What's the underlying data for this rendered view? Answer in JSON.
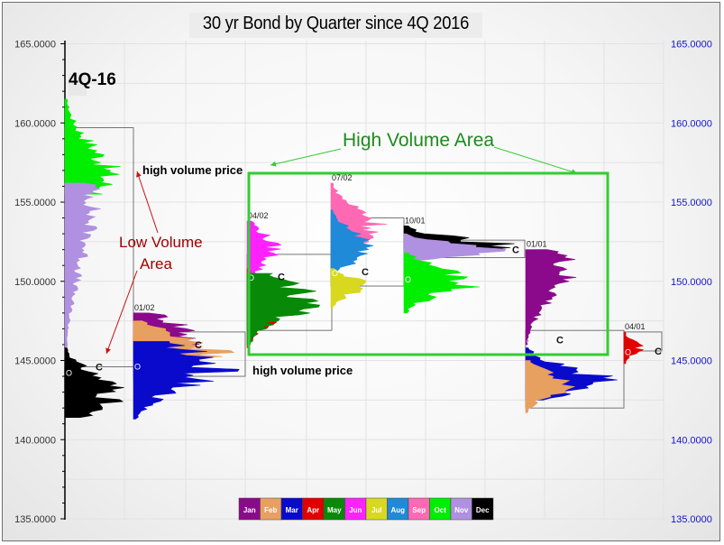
{
  "chart_data": {
    "type": "volume-profile",
    "title": "30 yr Bond by Quarter since 4Q 2016",
    "corner_label": "4Q-16",
    "y_axis": {
      "ylim": [
        135,
        166
      ],
      "ticks": [
        "135.0000",
        "140.0000",
        "145.0000",
        "150.0000",
        "155.0000",
        "160.0000",
        "165.0000"
      ],
      "left_color": "#333333",
      "right_color": "#1414c8"
    },
    "grid": true,
    "legend": {
      "placement": "bottom-center",
      "months": [
        {
          "label": "Jan",
          "color": "#8b0a8b"
        },
        {
          "label": "Feb",
          "color": "#e8a060"
        },
        {
          "label": "Mar",
          "color": "#0a0acd"
        },
        {
          "label": "Apr",
          "color": "#e00000"
        },
        {
          "label": "May",
          "color": "#088a08"
        },
        {
          "label": "Jun",
          "color": "#ff22ff"
        },
        {
          "label": "Jul",
          "color": "#d8d820"
        },
        {
          "label": "Aug",
          "color": "#1e8ad8"
        },
        {
          "label": "Sep",
          "color": "#ff69b4"
        },
        {
          "label": "Oct",
          "color": "#00ee00"
        },
        {
          "label": "Nov",
          "color": "#b090e0"
        },
        {
          "label": "Dec",
          "color": "#000000"
        }
      ]
    },
    "profiles": [
      {
        "date": "",
        "open": 144.2,
        "close": 144.6,
        "range_high": 161.5,
        "range_low": 141.4,
        "box_high": 159.7,
        "box_low": 144.6,
        "bands": [
          {
            "month": "Oct",
            "from": 155.5,
            "to": 161.5,
            "poc": 156.8,
            "width": 0.85
          },
          {
            "month": "Nov",
            "from": 145.2,
            "to": 156.2,
            "poc": 155.2,
            "width": 0.55
          },
          {
            "month": "Dec",
            "from": 141.4,
            "to": 145.8,
            "poc": 143.0,
            "width": 1.0
          }
        ]
      },
      {
        "date": "01/02",
        "open": 144.6,
        "close": 146.0,
        "range_high": 148.0,
        "range_low": 141.3,
        "box_high": 146.8,
        "box_low": 144.0,
        "bands": [
          {
            "month": "Jan",
            "from": 143.8,
            "to": 148.0,
            "poc": 146.5,
            "width": 0.75
          },
          {
            "month": "Feb",
            "from": 143.5,
            "to": 147.5,
            "poc": 145.7,
            "width": 1.0
          },
          {
            "month": "Mar",
            "from": 141.3,
            "to": 146.2,
            "poc": 144.5,
            "width": 1.0
          }
        ]
      },
      {
        "date": "04/02",
        "open": 150.2,
        "close": 150.3,
        "range_high": 153.8,
        "range_low": 145.8,
        "box_high": 151.7,
        "box_low": 146.9,
        "bands": [
          {
            "month": "Jun",
            "from": 149.5,
            "to": 153.8,
            "poc": 152.0,
            "width": 0.42
          },
          {
            "month": "Apr",
            "from": 145.8,
            "to": 150.8,
            "poc": 148.3,
            "width": 0.55
          },
          {
            "month": "May",
            "from": 146.0,
            "to": 150.5,
            "poc": 148.8,
            "width": 1.0
          }
        ]
      },
      {
        "date": "07/02",
        "open": 150.5,
        "close": 150.6,
        "range_high": 156.2,
        "range_low": 148.3,
        "box_high": 154.0,
        "box_low": 149.7,
        "bands": [
          {
            "month": "Sep",
            "from": 152.0,
            "to": 156.2,
            "poc": 153.5,
            "width": 0.85
          },
          {
            "month": "Aug",
            "from": 150.0,
            "to": 154.5,
            "poc": 152.2,
            "width": 0.7
          },
          {
            "month": "Jul",
            "from": 148.3,
            "to": 150.8,
            "poc": 149.7,
            "width": 0.6
          }
        ]
      },
      {
        "date": "10/01",
        "open": 150.1,
        "close": 152.0,
        "range_high": 153.5,
        "range_low": 148.0,
        "box_high": 152.6,
        "box_low": 151.5,
        "bands": [
          {
            "month": "Dec",
            "from": 152.0,
            "to": 153.5,
            "poc": 152.2,
            "width": 1.0
          },
          {
            "month": "Nov",
            "from": 151.3,
            "to": 153.0,
            "poc": 152.0,
            "width": 0.95
          },
          {
            "month": "Oct",
            "from": 148.0,
            "to": 151.8,
            "poc": 150.0,
            "width": 0.75
          }
        ]
      },
      {
        "date": "01/01",
        "open": 146.2,
        "close": 146.3,
        "range_high": 152.0,
        "range_low": 141.7,
        "box_high": 146.9,
        "box_low": 142.0,
        "bands": [
          {
            "month": "Jan",
            "from": 146.0,
            "to": 152.0,
            "poc": 150.8,
            "width": 0.55
          },
          {
            "month": "Mar",
            "from": 142.5,
            "to": 145.8,
            "poc": 143.8,
            "width": 1.0
          },
          {
            "month": "Feb",
            "from": 141.7,
            "to": 145.0,
            "poc": 143.5,
            "width": 0.55
          }
        ]
      },
      {
        "date": "04/01",
        "open": 145.5,
        "close": 145.6,
        "range_high": 146.8,
        "range_low": 144.8,
        "box_high": 146.8,
        "box_low": 145.6,
        "bands": [
          {
            "month": "Apr",
            "from": 144.8,
            "to": 146.8,
            "poc": 145.8,
            "width": 0.6
          }
        ]
      }
    ],
    "annotations": [
      {
        "text": "high volume price",
        "color": "#000000",
        "bold": true
      },
      {
        "text": "high volume price",
        "color": "#000000",
        "bold": true
      },
      {
        "text": "Low Volume",
        "color": "#a00000",
        "bold": false
      },
      {
        "text": "Area",
        "color": "#a00000",
        "bold": false
      },
      {
        "text": "High Volume Area",
        "color": "#1d8a1d",
        "bold": false
      }
    ]
  }
}
